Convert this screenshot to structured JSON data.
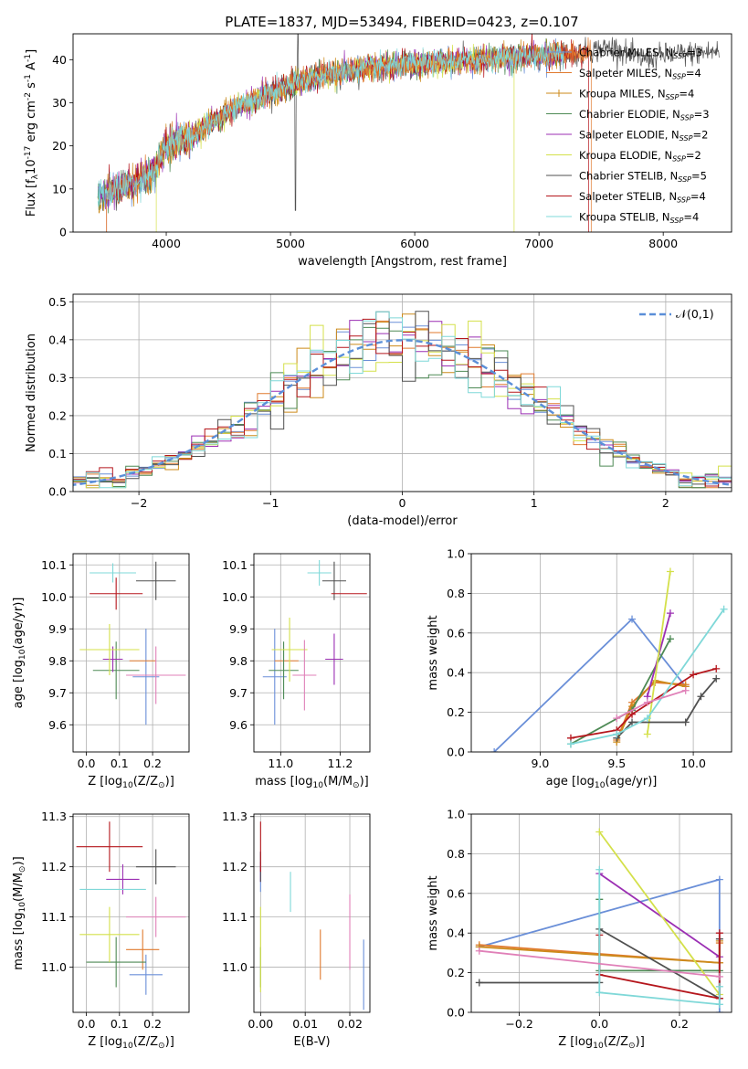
{
  "title": "PLATE=1837, MJD=53494, FIBERID=0423, z=0.107",
  "legend_labels": [
    "Chabrier MILES, N$_{SSP}$=3",
    "Salpeter MILES, N$_{SSP}$=4",
    "Kroupa MILES, N$_{SSP}$=4",
    "Chabrier ELODIE, N$_{SSP}$=3",
    "Salpeter ELODIE, N$_{SSP}$=2",
    "Kroupa ELODIE, N$_{SSP}$=2",
    "Chabrier STELIB, N$_{SSP}$=5",
    "Salpeter STELIB, N$_{SSP}$=4",
    "Kroupa STELIB, N$_{SSP}$=4"
  ],
  "colors": [
    "#6a8fd8",
    "#e07a2e",
    "#cc8a1a",
    "#4e8a55",
    "#9b2fb3",
    "#d4e04a",
    "#505050",
    "#b5161c",
    "#7fd8d8"
  ],
  "pink": "#e080b8",
  "chart_data": [
    {
      "id": "spectrum",
      "type": "line",
      "xlabel": "wavelength [Angstrom, rest frame]",
      "ylabel": "Flux [f$_\\lambda$10$^{-17}$ erg cm$^{-2}$ s$^{-1}$ A$^{-1}$]",
      "xlim": [
        3250,
        8550
      ],
      "ylim": [
        0,
        46
      ],
      "xticks": [
        4000,
        5000,
        6000,
        7000,
        8000
      ],
      "yticks": [
        0,
        10,
        20,
        30,
        40
      ],
      "flux_shape": [
        [
          3450,
          8.5
        ],
        [
          3700,
          11
        ],
        [
          3900,
          14
        ],
        [
          4000,
          20
        ],
        [
          4200,
          22
        ],
        [
          4500,
          28
        ],
        [
          4900,
          33
        ],
        [
          5200,
          36
        ],
        [
          5600,
          38
        ],
        [
          6000,
          39
        ],
        [
          6500,
          40
        ],
        [
          7000,
          41
        ],
        [
          7300,
          41.5
        ],
        [
          7600,
          43
        ],
        [
          7800,
          40
        ],
        [
          8000,
          41
        ],
        [
          8500,
          42
        ]
      ],
      "series_ranges": [
        [
          3450,
          7200
        ],
        [
          3520,
          7420
        ],
        [
          3450,
          7200
        ],
        [
          3450,
          7200
        ],
        [
          3450,
          7200
        ],
        [
          3920,
          6800
        ],
        [
          3450,
          8450
        ],
        [
          3520,
          7400
        ],
        [
          3450,
          7200
        ]
      ],
      "drops": [
        [
          1,
          3520,
          "start"
        ],
        [
          1,
          7420,
          "end"
        ],
        [
          5,
          3920,
          "start"
        ],
        [
          5,
          6800,
          "end"
        ],
        [
          7,
          3520,
          "start"
        ],
        [
          7,
          7400,
          "end"
        ]
      ]
    },
    {
      "id": "residual-hist",
      "type": "line",
      "xlabel": "(data-model)/error",
      "ylabel": "Normed distribution",
      "xlim": [
        -2.5,
        2.5
      ],
      "ylim": [
        0,
        0.52
      ],
      "xticks": [
        -2,
        -1,
        0,
        1,
        2
      ],
      "yticks": [
        0.0,
        0.1,
        0.2,
        0.3,
        0.4,
        0.5
      ],
      "gaussian_label": "$\\mathcal{N}(0,1)$",
      "bin_width": 0.1
    },
    {
      "id": "age-vs-Z",
      "type": "scatter",
      "xlabel": "Z [log$_{10}$(Z/Z$_\\odot$)]",
      "ylabel": "age  [log$_{10}$(age/yr)]",
      "xlim": [
        -0.04,
        0.31
      ],
      "ylim": [
        9.515,
        10.135
      ],
      "xticks": [
        0.0,
        0.1,
        0.2
      ],
      "yticks": [
        9.6,
        9.7,
        9.8,
        9.9,
        10.0,
        10.1
      ],
      "points": [
        {
          "c": 0,
          "x": 0.18,
          "xe": 0.04,
          "y": 9.75,
          "ye": 0.15
        },
        {
          "c": 1,
          "x": 0.17,
          "xe": 0.04,
          "y": 9.8,
          "ye": 0.0
        },
        {
          "c": 3,
          "x": 0.09,
          "xe": 0.07,
          "y": 9.77,
          "ye": 0.09
        },
        {
          "c": 4,
          "x": 0.08,
          "xe": 0.03,
          "y": 9.805,
          "ye": 0.04
        },
        {
          "c": 5,
          "x": 0.07,
          "xe": 0.09,
          "y": 9.835,
          "ye": 0.08
        },
        {
          "c": 6,
          "x": 0.21,
          "xe": 0.06,
          "y": 10.05,
          "ye": 0.06
        },
        {
          "c": 7,
          "x": 0.09,
          "xe": 0.08,
          "y": 10.01,
          "ye": 0.05
        },
        {
          "c": 8,
          "x": 0.08,
          "xe": 0.07,
          "y": 10.075,
          "ye": 0.03
        },
        {
          "c": -1,
          "x": 0.21,
          "xe": 0.09,
          "y": 9.755,
          "ye": 0.09
        }
      ]
    },
    {
      "id": "age-vs-mass",
      "type": "scatter",
      "xlabel": "mass [log$_{10}$(M/M$_\\odot$)]",
      "ylabel": "",
      "xlim": [
        10.91,
        11.3
      ],
      "ylim": [
        9.515,
        10.135
      ],
      "xticks": [
        11.0,
        11.2
      ],
      "yticks": [
        9.6,
        9.7,
        9.8,
        9.9,
        10.0,
        10.1
      ],
      "points": [
        {
          "c": 0,
          "x": 10.98,
          "xe": 0.04,
          "y": 9.75,
          "ye": 0.15
        },
        {
          "c": 1,
          "x": 11.02,
          "xe": 0.04,
          "y": 9.8,
          "ye": 0.0
        },
        {
          "c": 3,
          "x": 11.01,
          "xe": 0.05,
          "y": 9.77,
          "ye": 0.09
        },
        {
          "c": 4,
          "x": 11.18,
          "xe": 0.03,
          "y": 9.805,
          "ye": 0.08
        },
        {
          "c": 5,
          "x": 11.03,
          "xe": 0.06,
          "y": 9.835,
          "ye": 0.1
        },
        {
          "c": 6,
          "x": 11.18,
          "xe": 0.04,
          "y": 10.05,
          "ye": 0.06
        },
        {
          "c": 7,
          "x": 11.23,
          "xe": 0.06,
          "y": 10.01,
          "ye": 0.0
        },
        {
          "c": 8,
          "x": 11.13,
          "xe": 0.04,
          "y": 10.075,
          "ye": 0.04
        },
        {
          "c": -1,
          "x": 11.08,
          "xe": 0.04,
          "y": 9.755,
          "ye": 0.11
        }
      ]
    },
    {
      "id": "mass-weight-vs-age",
      "type": "line",
      "xlabel": "age  [log$_{10}$(age/yr)]",
      "ylabel": "mass weight",
      "xlim": [
        8.55,
        10.25
      ],
      "ylim": [
        0,
        1.0
      ],
      "xticks": [
        9.0,
        9.5,
        10.0
      ],
      "yticks": [
        0.0,
        0.2,
        0.4,
        0.6,
        0.8,
        1.0
      ],
      "series": [
        {
          "c": 0,
          "x": [
            8.7,
            9.6,
            9.95
          ],
          "y": [
            0.0,
            0.67,
            0.33
          ]
        },
        {
          "c": 1,
          "x": [
            9.5,
            9.6,
            9.75,
            9.95
          ],
          "y": [
            0.06,
            0.25,
            0.35,
            0.34
          ]
        },
        {
          "c": 2,
          "x": [
            9.5,
            9.6,
            9.75,
            9.95
          ],
          "y": [
            0.05,
            0.23,
            0.36,
            0.33
          ]
        },
        {
          "c": 3,
          "x": [
            9.2,
            9.6,
            9.85
          ],
          "y": [
            0.04,
            0.21,
            0.57
          ]
        },
        {
          "c": 4,
          "x": [
            9.7,
            9.85
          ],
          "y": [
            0.28,
            0.7
          ]
        },
        {
          "c": 5,
          "x": [
            9.7,
            9.85
          ],
          "y": [
            0.09,
            0.91
          ]
        },
        {
          "c": 6,
          "x": [
            9.5,
            9.6,
            9.95,
            10.05,
            10.15
          ],
          "y": [
            0.07,
            0.15,
            0.15,
            0.28,
            0.37
          ]
        },
        {
          "c": 7,
          "x": [
            9.2,
            9.5,
            9.6,
            10.0,
            10.15
          ],
          "y": [
            0.07,
            0.11,
            0.19,
            0.39,
            0.42
          ]
        },
        {
          "c": 8,
          "x": [
            9.2,
            9.5,
            9.7,
            10.2
          ],
          "y": [
            0.04,
            0.09,
            0.17,
            0.72
          ]
        },
        {
          "c": -1,
          "x": [
            9.5,
            9.7,
            9.95
          ],
          "y": [
            0.17,
            0.25,
            0.31
          ]
        }
      ]
    },
    {
      "id": "mass-vs-Z",
      "type": "scatter",
      "xlabel": "Z [log$_{10}$(Z/Z$_\\odot$)]",
      "ylabel": "mass [log$_{10}$(M/M$_\\odot$)]",
      "xlim": [
        -0.04,
        0.31
      ],
      "ylim": [
        10.91,
        11.305
      ],
      "xticks": [
        0.0,
        0.1,
        0.2
      ],
      "yticks": [
        11.0,
        11.1,
        11.2,
        11.3
      ],
      "points": [
        {
          "c": 0,
          "x": 0.18,
          "xe": 0.05,
          "y": 10.985,
          "ye": 0.04
        },
        {
          "c": 1,
          "x": 0.17,
          "xe": 0.05,
          "y": 11.035,
          "ye": 0.04
        },
        {
          "c": 3,
          "x": 0.09,
          "xe": 0.09,
          "y": 11.01,
          "ye": 0.05
        },
        {
          "c": 4,
          "x": 0.11,
          "xe": 0.05,
          "y": 11.175,
          "ye": 0.03
        },
        {
          "c": 5,
          "x": 0.07,
          "xe": 0.09,
          "y": 11.065,
          "ye": 0.055
        },
        {
          "c": 6,
          "x": 0.21,
          "xe": 0.06,
          "y": 11.2,
          "ye": 0.035
        },
        {
          "c": 7,
          "x": 0.07,
          "xe": 0.1,
          "y": 11.24,
          "ye": 0.05
        },
        {
          "c": 8,
          "x": 0.08,
          "xe": 0.1,
          "y": 11.155,
          "ye": 0.0
        },
        {
          "c": -1,
          "x": 0.21,
          "xe": 0.09,
          "y": 11.1,
          "ye": 0.04
        }
      ]
    },
    {
      "id": "mass-vs-EBV",
      "type": "scatter",
      "xlabel": "E(B-V)",
      "ylabel": "",
      "xlim": [
        -0.0015,
        0.0245
      ],
      "ylim": [
        10.91,
        11.305
      ],
      "xticks": [
        0.0,
        0.01,
        0.02
      ],
      "yticks": [
        11.0,
        11.1,
        11.2,
        11.3
      ],
      "points": [
        {
          "c": 0,
          "x": 0.0,
          "xe": 0.0,
          "y": 11.19,
          "ye": 0.04
        },
        {
          "c": 1,
          "x": 0.0134,
          "xe": 0.0,
          "y": 11.025,
          "ye": 0.05
        },
        {
          "c": 3,
          "x": 0.0,
          "xe": 0.0,
          "y": 11.0,
          "ye": 0.04
        },
        {
          "c": 4,
          "x": 0.0,
          "xe": 0.0,
          "y": 11.19,
          "ye": 0.02
        },
        {
          "c": 5,
          "x": 0.0,
          "xe": 0.0,
          "y": 11.035,
          "ye": 0.085
        },
        {
          "c": 6,
          "x": 0.0,
          "xe": 0.0,
          "y": 11.2,
          "ye": 0.03
        },
        {
          "c": 7,
          "x": 0.0,
          "xe": 0.0,
          "y": 11.24,
          "ye": 0.05
        },
        {
          "c": 8,
          "x": 0.0067,
          "xe": 0.0,
          "y": 11.15,
          "ye": 0.04
        },
        {
          "c": -1,
          "x": 0.02,
          "xe": 0.0,
          "y": 11.07,
          "ye": 0.075
        },
        {
          "c": 0,
          "x": 0.0231,
          "xe": 0.0,
          "y": 10.985,
          "ye": 0.07
        }
      ]
    },
    {
      "id": "mass-weight-vs-Z",
      "type": "line",
      "xlabel": "Z [log$_{10}$(Z/Z$_\\odot$)]",
      "ylabel": "mass weight",
      "xlim": [
        -0.32,
        0.33
      ],
      "ylim": [
        0,
        1.0
      ],
      "xticks": [
        -0.2,
        0.0,
        0.2
      ],
      "yticks": [
        0.0,
        0.2,
        0.4,
        0.6,
        0.8,
        1.0
      ],
      "series": [
        {
          "c": 0,
          "x": [
            -0.3,
            0.3,
            0.3
          ],
          "y": [
            0.33,
            0.67,
            0.0
          ]
        },
        {
          "c": 1,
          "x": [
            -0.3,
            0.3,
            0.3
          ],
          "y": [
            0.34,
            0.25,
            0.35
          ]
        },
        {
          "c": 2,
          "x": [
            -0.3,
            0.3,
            0.3
          ],
          "y": [
            0.33,
            0.25,
            0.36
          ]
        },
        {
          "c": 3,
          "x": [
            0.0,
            0.0,
            0.3
          ],
          "y": [
            0.57,
            0.21,
            0.21
          ]
        },
        {
          "c": 4,
          "x": [
            0.0,
            0.3
          ],
          "y": [
            0.7,
            0.28
          ]
        },
        {
          "c": 5,
          "x": [
            0.0,
            0.3
          ],
          "y": [
            0.91,
            0.09
          ]
        },
        {
          "c": 6,
          "x": [
            -0.3,
            0.0,
            0.0,
            0.3,
            0.3
          ],
          "y": [
            0.15,
            0.15,
            0.42,
            0.07,
            0.37
          ]
        },
        {
          "c": 7,
          "x": [
            0.0,
            0.0,
            0.3,
            0.3
          ],
          "y": [
            0.39,
            0.19,
            0.07,
            0.4
          ]
        },
        {
          "c": 8,
          "x": [
            0.0,
            0.0,
            0.3,
            0.3
          ],
          "y": [
            0.72,
            0.1,
            0.04,
            0.13
          ]
        },
        {
          "c": -1,
          "x": [
            -0.3,
            0.3
          ],
          "y": [
            0.31,
            0.18
          ]
        }
      ]
    }
  ]
}
